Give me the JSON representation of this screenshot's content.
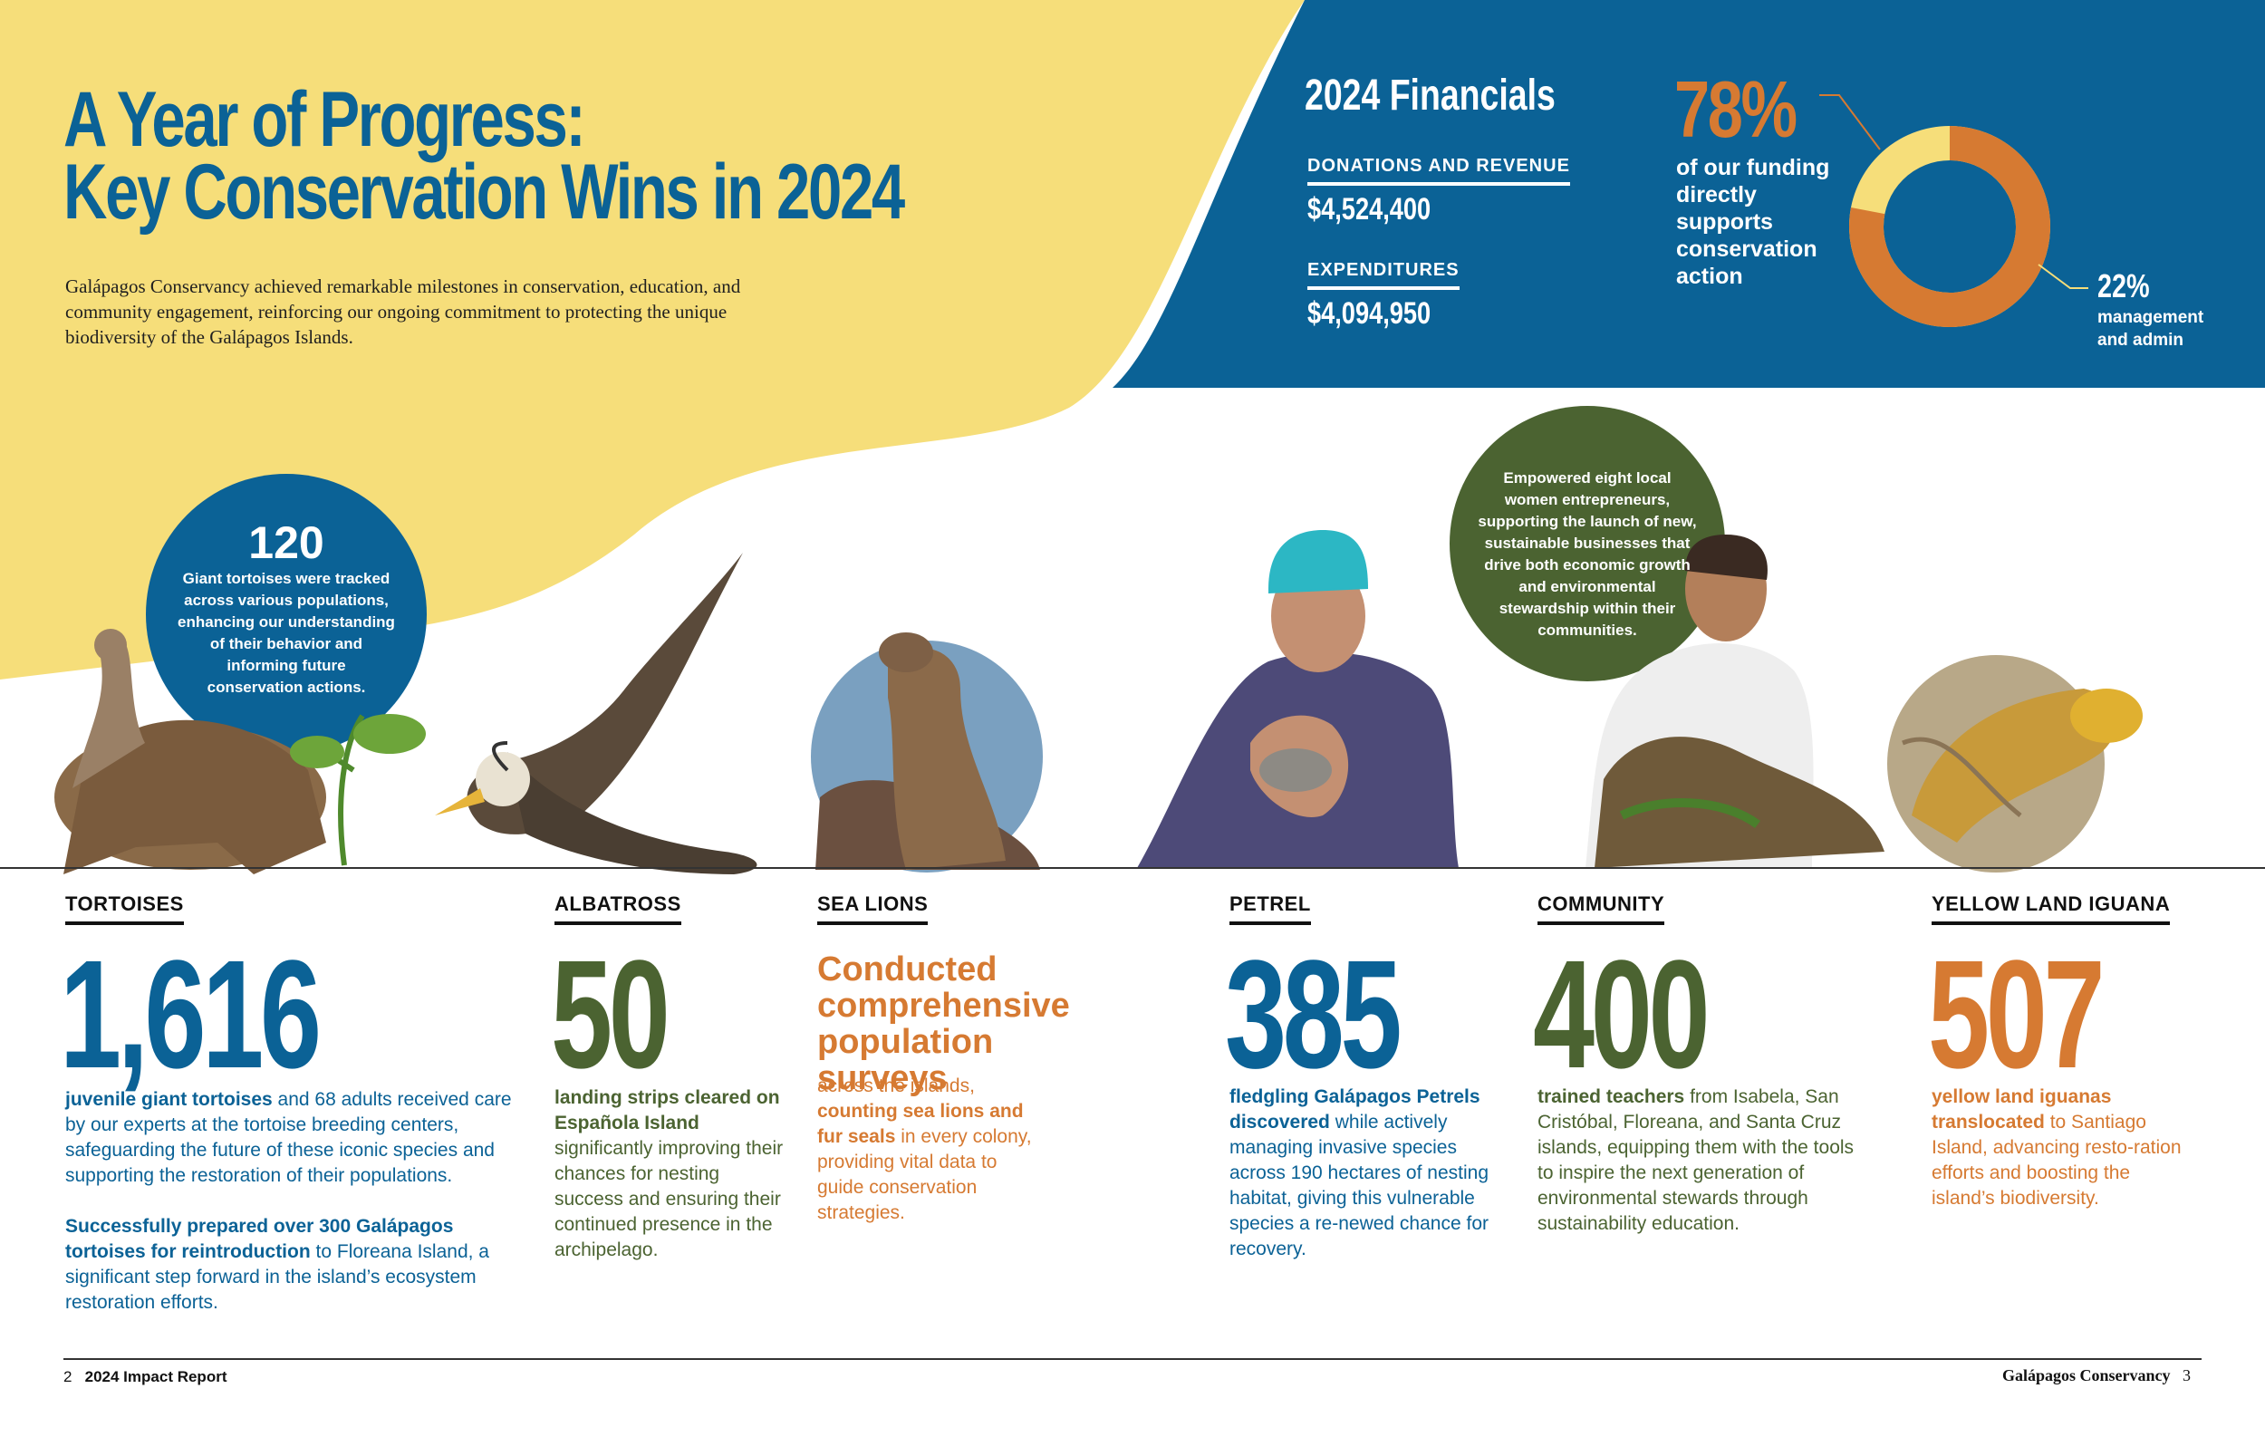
{
  "header": {
    "title_line1": "A Year of Progress:",
    "title_line2": "Key Conservation Wins in 2024",
    "intro": "Galápagos Conservancy achieved remarkable milestones in conservation, education, and community engagement, reinforcing our ongoing commitment to protecting the unique biodiversity of the Galápagos Islands."
  },
  "financials": {
    "title": "2024 Financials",
    "donations_label": "DONATIONS AND REVENUE",
    "donations_value": "$4,524,400",
    "expenditures_label": "EXPENDITURES",
    "expenditures_value": "$4,094,950",
    "conservation_pct": "78%",
    "conservation_desc": "of our funding directly supports conservation action",
    "admin_pct": "22%",
    "admin_desc": "management and admin"
  },
  "chart_data": {
    "type": "pie",
    "categories": [
      "conservation action",
      "management and admin"
    ],
    "values": [
      78,
      22
    ]
  },
  "bubbles": {
    "tortoise_num": "120",
    "tortoise_text": "Giant tortoises were tracked across various populations, enhancing our understanding of their behavior and informing future conservation actions.",
    "community_text": "Empowered eight local women entrepreneurs, supporting the launch of new, sustainable businesses that drive both economic growth and environmental stewardship within their communities."
  },
  "sections": {
    "tortoises": {
      "label": "TORTOISES",
      "number": "1,616",
      "p1_bold": "juvenile giant tortoises",
      "p1_rest": " and 68 adults received care by our experts at the tortoise breeding centers, safeguarding the future of these iconic species and supporting the restoration of their populations.",
      "p2_bold": "Successfully prepared over 300 Galápagos tortoises for reintroduction",
      "p2_rest": " to Floreana Island, a significant step forward in the island’s ecosystem restoration efforts."
    },
    "albatross": {
      "label": "ALBATROSS",
      "number": "50",
      "bold": "landing strips cleared on Española Island",
      "rest": " significantly improving their chances for nesting success and ensuring their continued presence in the archipelago."
    },
    "sealions": {
      "label": "SEA LIONS",
      "headline": "Conducted comprehensive population surveys",
      "pre": "across the islands, ",
      "bold": "counting sea lions and fur seals",
      "rest": " in every colony, providing vital data to guide conservation strategies."
    },
    "petrel": {
      "label": "PETREL",
      "number": "385",
      "bold": "fledgling Galápagos Petrels discovered",
      "rest": " while actively managing invasive species across 190 hectares of nesting habitat, giving this vulnerable species a re-newed chance for recovery."
    },
    "community": {
      "label": "COMMUNITY",
      "number": "400",
      "bold": "trained teachers",
      "rest": " from Isabela, San Cristóbal, Floreana, and Santa Cruz islands, equipping them with the tools to inspire the next generation of environmental stewards through sustainability education."
    },
    "iguana": {
      "label": "YELLOW LAND IGUANA",
      "number": "507",
      "bold": "yellow land iguanas translocated",
      "rest": " to Santiago Island, advancing resto-ration efforts and boosting the island’s biodiversity."
    }
  },
  "footer": {
    "page_left": "2",
    "report": "2024 Impact Report",
    "org": "Galápagos Conservancy",
    "page_right": "3"
  },
  "colors": {
    "yellow": "#f6de7a",
    "blue": "#0b6296",
    "green": "#4b6331",
    "orange": "#d67a32"
  }
}
